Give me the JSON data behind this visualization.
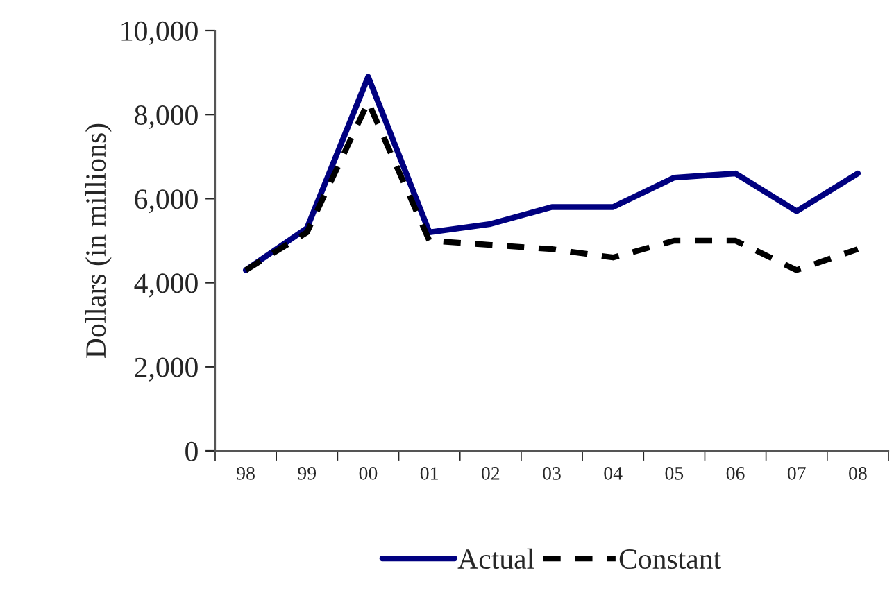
{
  "chart_data": {
    "type": "line",
    "ylabel": "Dollars (in millions)",
    "categories": [
      "98",
      "99",
      "00",
      "01",
      "02",
      "03",
      "04",
      "05",
      "06",
      "07",
      "08"
    ],
    "series": [
      {
        "name": "Actual",
        "color": "#000080",
        "line_style": "solid",
        "values": [
          4300,
          5300,
          8900,
          5200,
          5400,
          5800,
          5800,
          6500,
          6600,
          5700,
          6600
        ]
      },
      {
        "name": "Constant",
        "color": "#000000",
        "line_style": "dashed",
        "values": [
          4300,
          5200,
          8300,
          5000,
          4900,
          4800,
          4600,
          5000,
          5000,
          4300,
          4800
        ]
      }
    ],
    "ylim": [
      0,
      10000
    ],
    "yticks": [
      0,
      {
        "value": 2000,
        "label": "2,000"
      },
      {
        "value": 4000,
        "label": "4,000"
      },
      {
        "value": 6000,
        "label": "6,000"
      },
      {
        "value": 8000,
        "label": "8,000"
      },
      {
        "value": 10000,
        "label": "10,000"
      }
    ],
    "grid": false,
    "legend": "bottom",
    "marker": "none"
  }
}
